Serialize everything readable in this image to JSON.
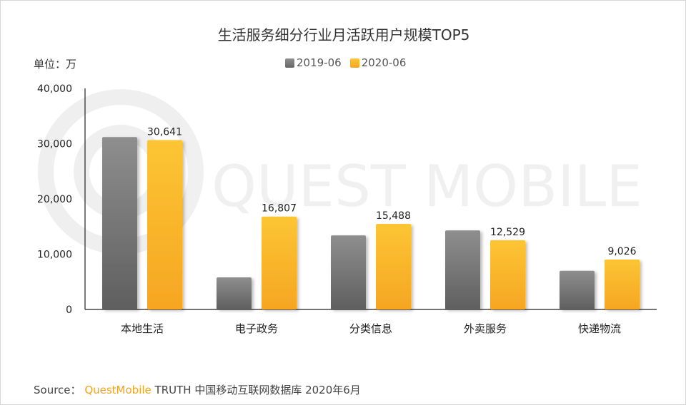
{
  "chart_data": {
    "type": "bar",
    "title": "生活服务细分行业月活跃用户规模TOP5",
    "unit_label": "单位：万",
    "categories": [
      "本地生活",
      "电子政务",
      "分类信息",
      "外卖服务",
      "快递物流"
    ],
    "series": [
      {
        "name": "2019-06",
        "values": [
          31200,
          5800,
          13400,
          14300,
          7000
        ],
        "color": "#7a7a7a",
        "labels": [
          "",
          "",
          "",
          "",
          ""
        ]
      },
      {
        "name": "2020-06",
        "values": [
          30641,
          16807,
          15488,
          12529,
          9026
        ],
        "color": "#f7b52c",
        "labels": [
          "30,641",
          "16,807",
          "15,488",
          "12,529",
          "9,026"
        ]
      }
    ],
    "ylim": [
      0,
      40000
    ],
    "yticks": [
      "0",
      "10,000",
      "20,000",
      "30,000",
      "40,000"
    ],
    "ytick_values": [
      0,
      10000,
      20000,
      30000,
      40000
    ],
    "grid": false,
    "legend_position": "top-center"
  },
  "source": {
    "prefix": "Source：",
    "brand": "QuestMobile",
    "rest": "TRUTH 中国移动互联网数据库 2020年6月"
  }
}
